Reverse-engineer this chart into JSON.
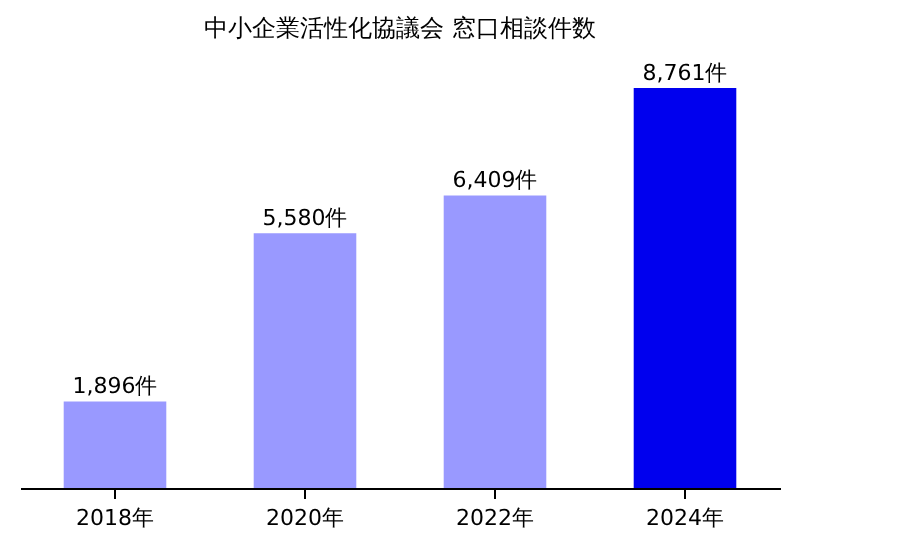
{
  "chart_data": {
    "type": "bar",
    "title": "中小企業活性化協議会 窓口相談件数",
    "categories": [
      "2018年",
      "2020年",
      "2022年",
      "2024年"
    ],
    "values": [
      1896,
      5580,
      6409,
      8761
    ],
    "colors": [
      "#9999ff",
      "#9999ff",
      "#9999ff",
      "#0000ee"
    ],
    "value_labels": [
      "1,896件",
      "5,580件",
      "6,409件",
      "8,761件"
    ]
  }
}
